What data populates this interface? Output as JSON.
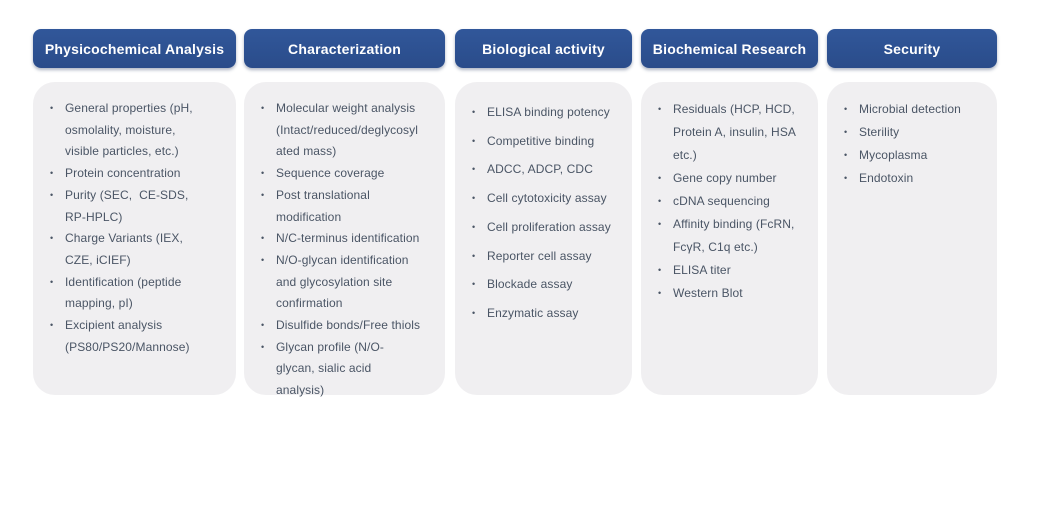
{
  "theme": {
    "header_bg": "#2d5292",
    "header_text_color": "#ffffff",
    "card_bg": "#f0eff1",
    "body_text_color": "#4a5565",
    "bullet_char": "•"
  },
  "columns": [
    {
      "title": "Physicochemical Analysis",
      "items": [
        "General properties (pH, osmolality, moisture, visible particles, etc.)",
        "Protein concentration",
        "Purity (SEC,  CE-SDS, RP-HPLC)",
        "Charge Variants (IEX, CZE, iCIEF)",
        "Identification (peptide mapping, pI)",
        "Excipient analysis (PS80/PS20/Mannose)"
      ]
    },
    {
      "title": "Characterization",
      "items": [
        "Molecular weight analysis (Intact/reduced/deglycosylated mass)",
        "Sequence coverage",
        "Post translational modification",
        "N/C-terminus identification",
        "N/O-glycan identification and glycosylation site confirmation",
        "Disulfide bonds/Free thiols",
        "Glycan profile (N/O-glycan, sialic acid analysis)"
      ]
    },
    {
      "title": "Biological activity",
      "items": [
        "ELISA binding potency",
        "Competitive binding",
        "ADCC, ADCP, CDC",
        "Cell cytotoxicity assay",
        "Cell proliferation assay",
        "Reporter cell assay",
        "Blockade assay",
        "Enzymatic assay"
      ]
    },
    {
      "title": "Biochemical Research",
      "items": [
        "Residuals (HCP, HCD, Protein A, insulin, HSA etc.)",
        "Gene copy number",
        "cDNA sequencing",
        "Affinity binding (FcRN, FcγR, C1q etc.)",
        "ELISA titer",
        "Western Blot"
      ]
    },
    {
      "title": "Security",
      "items": [
        "Microbial detection",
        "Sterility",
        "Mycoplasma",
        "Endotoxin"
      ]
    }
  ]
}
